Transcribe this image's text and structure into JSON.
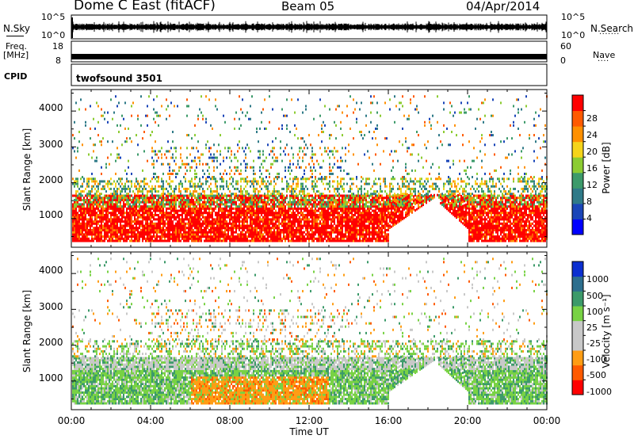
{
  "header": {
    "station": "Dome C East (fitACF)",
    "beam": "Beam 05",
    "date": "04/Apr/2014"
  },
  "side_labels": {
    "nsky": "N.Sky",
    "freq_line1": "Freq.",
    "freq_line2": "[MHz]",
    "cpid": "CPID",
    "nsearch": "N.Search",
    "nsearch_dots": ".......",
    "nave": "Nave",
    "nave_dots": "...."
  },
  "noise_panel": {
    "left_ticks": [
      "10^5",
      "10^0"
    ],
    "right_ticks": [
      "10^5",
      "10^0"
    ]
  },
  "freq_panel": {
    "left_ticks": [
      "18",
      "8"
    ],
    "right_ticks": [
      "60",
      "0"
    ]
  },
  "cpid_panel": {
    "text": "twofsound 3501"
  },
  "colors": {
    "power": [
      "#0000ff",
      "#1a45b8",
      "#2f7a88",
      "#3c9a6a",
      "#8ccc32",
      "#f5d41a",
      "#ff9000",
      "#ff5a00",
      "#ff0000"
    ],
    "velocity": [
      "#ff0000",
      "#ff5a00",
      "#ff9d14",
      "#c8c8c8",
      "#c8c8c8",
      "#78d244",
      "#3c9a6a",
      "#2d6f8e",
      "#0b2fd0"
    ]
  },
  "chart_data": [
    {
      "type": "heatmap",
      "panel": "power",
      "ylabel": "Slant Range [km]",
      "ylim": [
        200,
        4600
      ],
      "yticks": [
        "1000",
        "2000",
        "3000",
        "4000"
      ],
      "colorbar_label": "Power [dB]",
      "colorbar_ticks": [
        "4",
        "8",
        "12",
        "16",
        "20",
        "24",
        "28"
      ],
      "bands": [
        {
          "range_km": [
            350,
            1600
          ],
          "level": "high",
          "hours": [
            0,
            24
          ]
        },
        {
          "range_km": [
            1600,
            2000
          ],
          "level": "medium",
          "hours": [
            0,
            24
          ]
        },
        {
          "range_km": [
            2000,
            3000
          ],
          "level": "scattered",
          "hours": [
            4,
            14
          ]
        }
      ]
    },
    {
      "type": "heatmap",
      "panel": "velocity",
      "ylabel": "Slant Range [km]",
      "xlabel": "Time UT",
      "ylim": [
        200,
        4600
      ],
      "yticks": [
        "1000",
        "2000",
        "3000",
        "4000"
      ],
      "x_ticks": [
        "00:00",
        "04:00",
        "08:00",
        "12:00",
        "16:00",
        "20:00",
        "00:00"
      ],
      "colorbar_label": "Velocity [m s⁻¹]",
      "colorbar_ticks": [
        "1000",
        "500",
        "100",
        "25",
        "-25",
        "-100",
        "-500",
        "-1000"
      ]
    }
  ]
}
